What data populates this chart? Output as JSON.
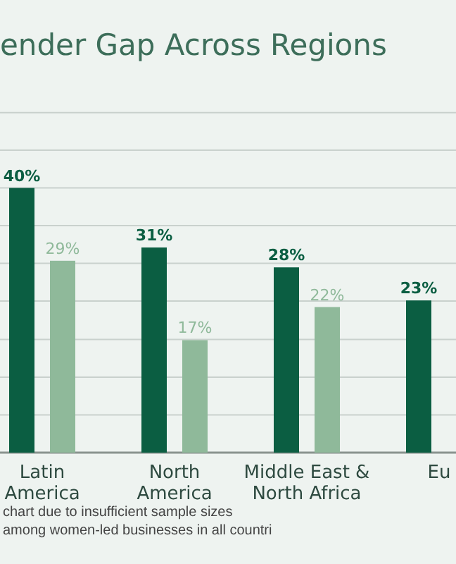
{
  "chart_data": {
    "type": "bar",
    "title": "ender Gap Across Regions",
    "categories": [
      "Latin America",
      "North America",
      "Middle East & North Africa",
      "Eu"
    ],
    "series": [
      {
        "color": "#0b5e42",
        "values": [
          40,
          31,
          28,
          23
        ],
        "value_labels": [
          "40%",
          "31%",
          "28%",
          "23%"
        ]
      },
      {
        "color": "#8fb99a",
        "values": [
          29,
          17,
          22,
          null
        ],
        "value_labels": [
          "29%",
          "17%",
          "22%",
          null
        ]
      }
    ],
    "ylim": [
      0,
      52
    ],
    "yticks": [
      {
        "value": 5.7,
        "label": null
      },
      {
        "value": 11.4,
        "label": null
      },
      {
        "value": 17.1,
        "label": null
      },
      {
        "value": 22.9,
        "label": null
      },
      {
        "value": 28.6,
        "label": null
      },
      {
        "value": 34.3,
        "label": null
      },
      {
        "value": 40,
        "label": null
      },
      {
        "value": 45.7,
        "label": null
      },
      {
        "value": 51.4,
        "label": null
      }
    ],
    "grid": "y",
    "annotations": [
      "chart due to insufficient sample sizes among women-led businesses in all countri"
    ]
  }
}
